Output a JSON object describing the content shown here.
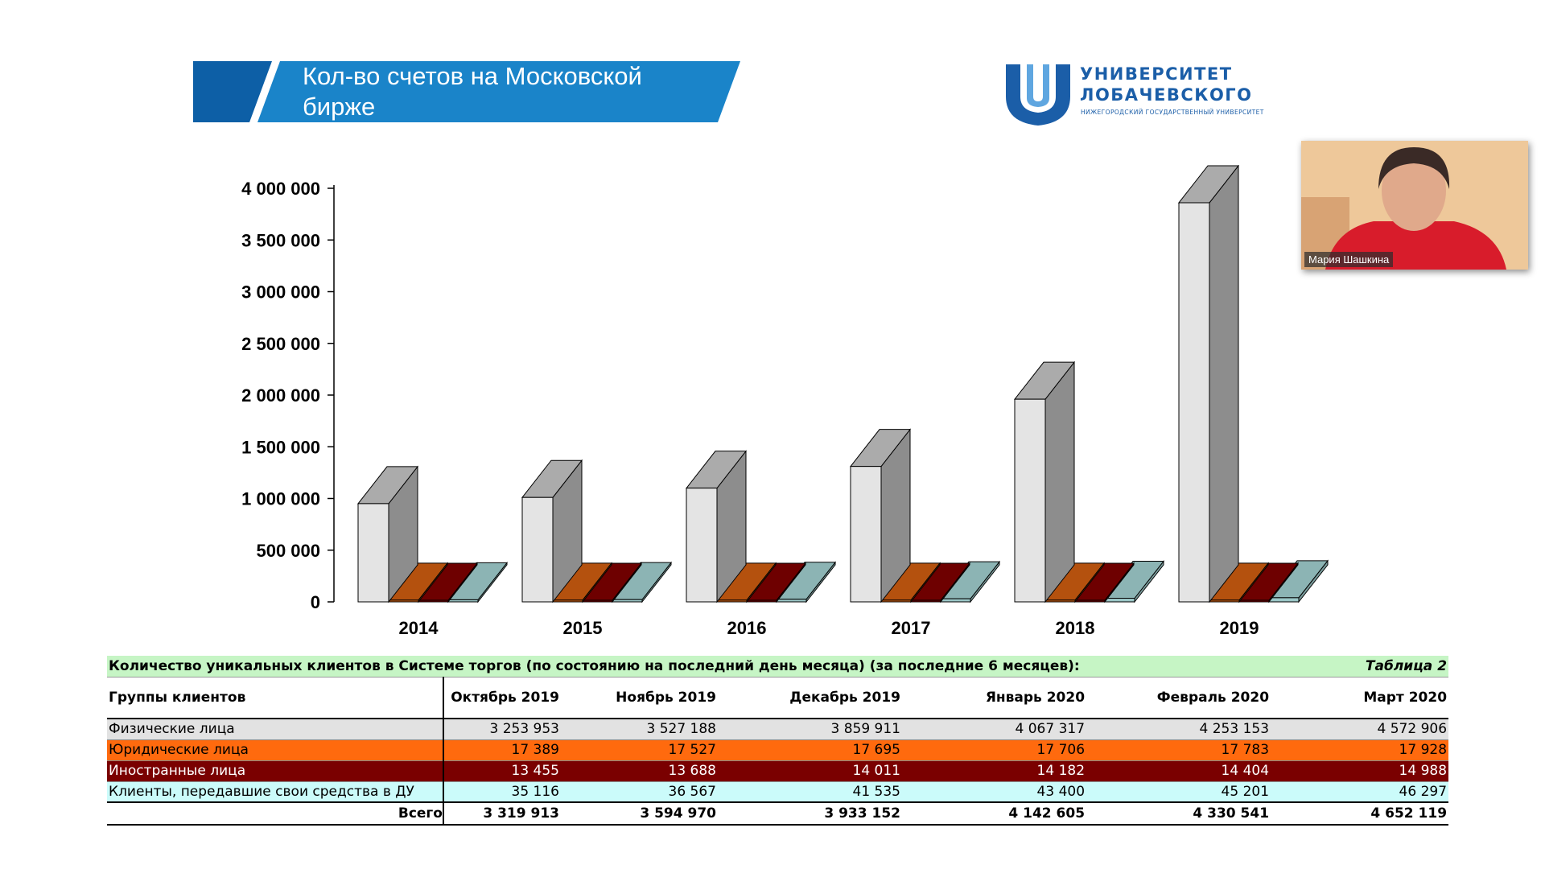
{
  "header": {
    "title_line1": "Кол-во счетов на Московской",
    "title_line2": "бирже",
    "banner_color": "#1a84c9"
  },
  "logo": {
    "line1": "УНИВЕРСИТЕТ",
    "line2": "ЛОБАЧЕВСКОГО",
    "sub": "НИЖЕГОРОДСКИЙ ГОСУДАРСТВЕННЫЙ УНИВЕРСИТЕТ",
    "color": "#1b5ea8"
  },
  "webcam": {
    "name": "Мария Шашкина"
  },
  "chart_data": {
    "type": "bar",
    "style": "3d-clustered",
    "categories": [
      "2014",
      "2015",
      "2016",
      "2017",
      "2018",
      "2019"
    ],
    "ylim": [
      0,
      4000000
    ],
    "yticks": [
      0,
      500000,
      1000000,
      1500000,
      2000000,
      2500000,
      3000000,
      3500000,
      4000000
    ],
    "ytick_labels": [
      "0",
      "500 000",
      "1 000 000",
      "1 500 000",
      "2 000 000",
      "2 500 000",
      "3 000 000",
      "3 500 000",
      "4 000 000"
    ],
    "series": [
      {
        "values": [
          950000,
          1010000,
          1100000,
          1310000,
          1960000,
          3860000
        ],
        "color": "#e4e4e4"
      },
      {
        "values": [
          17000,
          17000,
          17000,
          17000,
          17000,
          17000
        ],
        "color": "#c85a10"
      },
      {
        "values": [
          13000,
          13000,
          13000,
          13000,
          13000,
          13000
        ],
        "color": "#7a0000"
      },
      {
        "values": [
          20000,
          22000,
          25000,
          30000,
          35000,
          40000
        ],
        "color": "#9cc8c8"
      }
    ]
  },
  "table": {
    "caption": "Количество уникальных клиентов в Системе торгов (по состоянию на последний день месяца) (за последние 6 месяцев):",
    "table_no": "Таблица 2",
    "header_group": "Группы клиентов",
    "months": [
      "Октябрь 2019",
      "Ноябрь 2019",
      "Декабрь 2019",
      "Январь 2020",
      "Февраль 2020",
      "Март 2020"
    ],
    "rows": [
      {
        "label": "Физические лица",
        "values": [
          "3 253 953",
          "3 527 188",
          "3 859 911",
          "4 067 317",
          "4 253 153",
          "4 572 906"
        ]
      },
      {
        "label": "Юридические лица",
        "values": [
          "17 389",
          "17 527",
          "17 695",
          "17 706",
          "17 783",
          "17 928"
        ]
      },
      {
        "label": "Иностранные лица",
        "values": [
          "13 455",
          "13 688",
          "14 011",
          "14 182",
          "14 404",
          "14 988"
        ]
      },
      {
        "label": "Клиенты, передавшие свои средства в ДУ",
        "values": [
          "35 116",
          "36 567",
          "41 535",
          "43 400",
          "45 201",
          "46 297"
        ]
      }
    ],
    "total": {
      "label": "Всего",
      "values": [
        "3 319 913",
        "3 594 970",
        "3 933 152",
        "4 142 605",
        "4 330 541",
        "4 652 119"
      ]
    }
  }
}
